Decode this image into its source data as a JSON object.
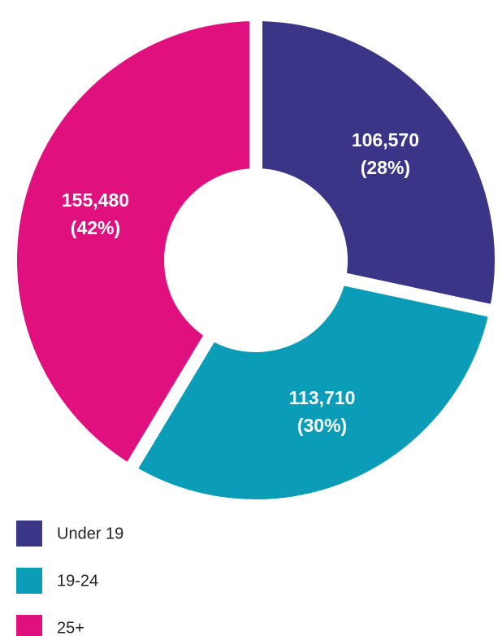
{
  "chart_data": {
    "type": "donut",
    "categories": [
      "Under 19",
      "19-24",
      "25+"
    ],
    "values": [
      106570,
      113710,
      155480
    ],
    "value_labels": [
      "106,570",
      "113,710",
      "155,480"
    ],
    "percent_labels": [
      "(28%)",
      "(30%)",
      "(42%)"
    ],
    "colors": [
      "#3a3587",
      "#0b9db8",
      "#e0107e"
    ],
    "legend": "bottom-left"
  }
}
